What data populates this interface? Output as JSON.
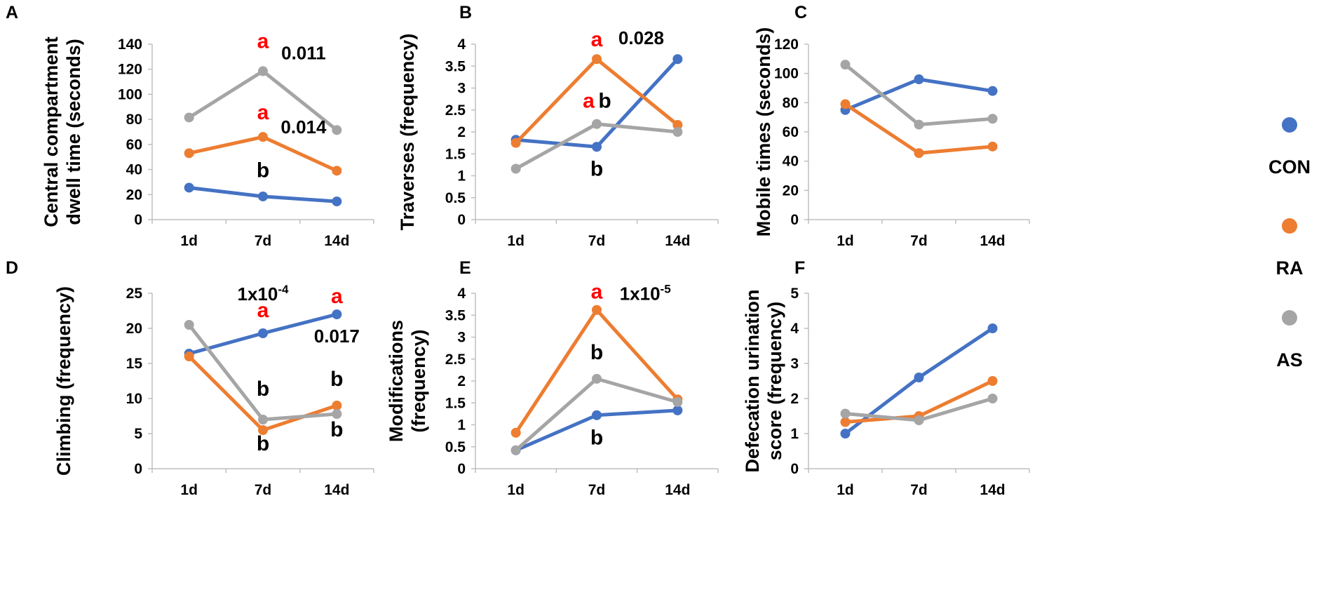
{
  "colors": {
    "CON": "#4472c4",
    "RA": "#ed7d31",
    "AS": "#a5a5a5",
    "annotation_red": "#ff0000"
  },
  "legend": [
    {
      "name": "CON",
      "color": "#4472c4"
    },
    {
      "name": "RA",
      "color": "#ed7d31"
    },
    {
      "name": "AS",
      "color": "#a5a5a5"
    }
  ],
  "chart_data": [
    {
      "panel": "A",
      "type": "line",
      "ylabel": [
        "Central compartment",
        "dwell time (seconds)"
      ],
      "categories": [
        "1d",
        "7d",
        "14d"
      ],
      "ylim": [
        0,
        140
      ],
      "yticks": [
        "0",
        "20",
        "40",
        "60",
        "80",
        "100",
        "120",
        "140"
      ],
      "series": [
        {
          "name": "CON",
          "values": [
            25.5,
            18.5,
            14.5
          ]
        },
        {
          "name": "RA",
          "values": [
            53,
            66,
            39
          ]
        },
        {
          "name": "AS",
          "values": [
            81.5,
            118.5,
            71.5
          ]
        }
      ],
      "annotations": [
        {
          "text": "a",
          "red": true,
          "x": "7d",
          "y": 137
        },
        {
          "text": "0.011",
          "red": false,
          "p": true,
          "x": "7d",
          "y": 128,
          "dx": 0.55
        },
        {
          "text": "a",
          "red": true,
          "x": "7d",
          "y": 80
        },
        {
          "text": "0.014",
          "red": false,
          "p": true,
          "x": "7d",
          "y": 69,
          "dx": 0.55
        },
        {
          "text": "b",
          "red": false,
          "x": "7d",
          "y": 34
        }
      ]
    },
    {
      "panel": "B",
      "type": "line",
      "ylabel": [
        "Traverses (frequency)"
      ],
      "categories": [
        "1d",
        "7d",
        "14d"
      ],
      "ylim": [
        0,
        4
      ],
      "yticks": [
        "0",
        "0.5",
        "1",
        "1.5",
        "2",
        "2.5",
        "3",
        "3.5",
        "4"
      ],
      "series": [
        {
          "name": "CON",
          "values": [
            1.82,
            1.66,
            3.66
          ]
        },
        {
          "name": "RA",
          "values": [
            1.75,
            3.66,
            2.16
          ]
        },
        {
          "name": "AS",
          "values": [
            1.16,
            2.18,
            2.0
          ]
        }
      ],
      "annotations": [
        {
          "text": "a",
          "red": true,
          "x": "7d",
          "y": 3.95
        },
        {
          "text": "0.028",
          "red": false,
          "p": true,
          "x": "7d",
          "y": 4.0,
          "dx": 0.55
        },
        {
          "text": "a",
          "red": true,
          "x": "7d",
          "y": 2.55,
          "dx": -0.1
        },
        {
          "text": "b",
          "red": false,
          "x": "7d",
          "y": 2.55,
          "dx": 0.1
        },
        {
          "text": "b",
          "red": false,
          "x": "7d",
          "y": 1.0
        }
      ]
    },
    {
      "panel": "C",
      "type": "line",
      "ylabel": [
        "Mobile times (seconds)"
      ],
      "categories": [
        "1d",
        "7d",
        "14d"
      ],
      "ylim": [
        0,
        120
      ],
      "yticks": [
        "0",
        "20",
        "40",
        "60",
        "80",
        "100",
        "120"
      ],
      "series": [
        {
          "name": "CON",
          "values": [
            75,
            96,
            88
          ]
        },
        {
          "name": "RA",
          "values": [
            79,
            45.5,
            50
          ]
        },
        {
          "name": "AS",
          "values": [
            106,
            65,
            69
          ]
        }
      ],
      "annotations": []
    },
    {
      "panel": "D",
      "type": "line",
      "ylabel": [
        "Climbing (frequency)"
      ],
      "categories": [
        "1d",
        "7d",
        "14d"
      ],
      "ylim": [
        0,
        25
      ],
      "yticks": [
        "0",
        "5",
        "10",
        "15",
        "20",
        "25"
      ],
      "series": [
        {
          "name": "CON",
          "values": [
            16.4,
            19.3,
            22.0
          ]
        },
        {
          "name": "RA",
          "values": [
            16.0,
            5.5,
            9.0
          ]
        },
        {
          "name": "AS",
          "values": [
            20.5,
            7.0,
            7.8
          ]
        }
      ],
      "annotations": [
        {
          "text": "1x10",
          "sup": "-4",
          "red": false,
          "p": true,
          "x": "7d",
          "y": 24.0
        },
        {
          "text": "a",
          "red": true,
          "x": "7d",
          "y": 21.6
        },
        {
          "text": "a",
          "red": true,
          "x": "14d",
          "y": 23.6
        },
        {
          "text": "0.017",
          "red": false,
          "p": true,
          "x": "14d",
          "y": 18.0
        },
        {
          "text": "b",
          "red": false,
          "x": "7d",
          "y": 10.4
        },
        {
          "text": "b",
          "red": false,
          "x": "14d",
          "y": 11.8
        },
        {
          "text": "b",
          "red": false,
          "x": "7d",
          "y": 2.6
        },
        {
          "text": "b",
          "red": false,
          "x": "14d",
          "y": 4.6
        }
      ]
    },
    {
      "panel": "E",
      "type": "line",
      "ylabel": [
        "Modifications",
        "(frequency)"
      ],
      "categories": [
        "1d",
        "7d",
        "14d"
      ],
      "ylim": [
        0,
        4
      ],
      "yticks": [
        "0",
        "0.5",
        "1",
        "1.5",
        "2",
        "2.5",
        "3",
        "3.5",
        "4"
      ],
      "series": [
        {
          "name": "CON",
          "values": [
            0.42,
            1.22,
            1.33
          ]
        },
        {
          "name": "RA",
          "values": [
            0.82,
            3.62,
            1.58
          ]
        },
        {
          "name": "AS",
          "values": [
            0.42,
            2.05,
            1.52
          ]
        }
      ],
      "annotations": [
        {
          "text": "a",
          "red": true,
          "x": "7d",
          "y": 3.88
        },
        {
          "text": "1x10",
          "sup": "-5",
          "red": false,
          "p": true,
          "x": "7d",
          "y": 3.85,
          "dx": 0.6
        },
        {
          "text": "b",
          "red": false,
          "x": "7d",
          "y": 2.5
        },
        {
          "text": "b",
          "red": false,
          "x": "7d",
          "y": 0.55
        }
      ]
    },
    {
      "panel": "F",
      "type": "line",
      "ylabel": [
        "Defecation urination",
        "score (frequency)"
      ],
      "categories": [
        "1d",
        "7d",
        "14d"
      ],
      "ylim": [
        0,
        5
      ],
      "yticks": [
        "0",
        "1",
        "2",
        "3",
        "4",
        "5"
      ],
      "series": [
        {
          "name": "CON",
          "values": [
            1.0,
            2.6,
            4.0
          ]
        },
        {
          "name": "RA",
          "values": [
            1.33,
            1.5,
            2.5
          ]
        },
        {
          "name": "AS",
          "values": [
            1.57,
            1.38,
            2.0
          ]
        }
      ],
      "annotations": []
    }
  ]
}
